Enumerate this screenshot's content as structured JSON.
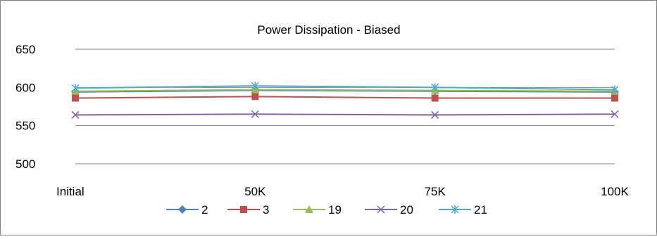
{
  "chart_data": {
    "type": "line",
    "title": "Power Dissipation - Biased",
    "xlabel": "",
    "ylabel": "",
    "categories": [
      "Initial",
      "50K",
      "75K",
      "100K"
    ],
    "ylim": [
      500,
      650
    ],
    "yticks": [
      "500",
      "550",
      "600",
      "650"
    ],
    "grid": true,
    "legend_position": "bottom",
    "series": [
      {
        "name": "2",
        "values": [
          594,
          596,
          595,
          594
        ],
        "color": "#4F81BD",
        "marker": "diamond"
      },
      {
        "name": "3",
        "values": [
          586,
          588,
          586,
          586
        ],
        "color": "#C0504D",
        "marker": "square"
      },
      {
        "name": "19",
        "values": [
          595,
          597,
          596,
          595
        ],
        "color": "#9BBB59",
        "marker": "triangle"
      },
      {
        "name": "20",
        "values": [
          564,
          565,
          564,
          565
        ],
        "color": "#8064A2",
        "marker": "x"
      },
      {
        "name": "21",
        "values": [
          599,
          602,
          600,
          597
        ],
        "color": "#4BACC6",
        "marker": "star"
      }
    ]
  }
}
